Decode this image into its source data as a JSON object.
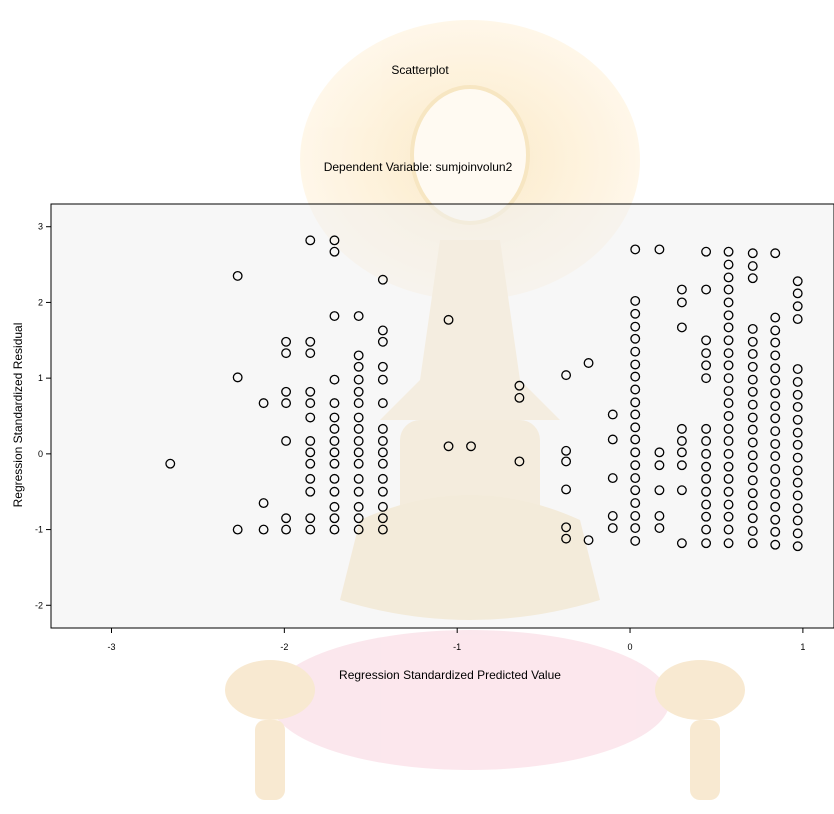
{
  "chart_data": {
    "type": "scatter",
    "title": "Scatterplot",
    "subtitle": "Dependent Variable: sumjoinvolun2",
    "xlabel": "Regression Standardized Predicted Value",
    "ylabel": "Regression Standardized Residual",
    "xlim": [
      -3.35,
      1.18
    ],
    "ylim": [
      -2.3,
      3.3
    ],
    "xticks": [
      "-3",
      "-2",
      "-1",
      "0",
      "1"
    ],
    "yticks": [
      "-2",
      "-1",
      "0",
      "1",
      "2",
      "3"
    ],
    "grid": false,
    "plot_background": "#f0f0f0",
    "marker": "open-circle",
    "columns": [
      {
        "x": -2.66,
        "y": [
          -0.13
        ]
      },
      {
        "x": -2.27,
        "y": [
          2.35,
          1.01,
          -1.0
        ]
      },
      {
        "x": -2.12,
        "y": [
          0.67,
          -0.65,
          -1.0
        ]
      },
      {
        "x": -1.99,
        "y": [
          1.48,
          1.33,
          0.82,
          0.67,
          0.17,
          -0.85,
          -1.0
        ]
      },
      {
        "x": -1.85,
        "y": [
          2.82,
          1.48,
          1.33,
          0.82,
          0.67,
          0.48,
          0.17,
          0.02,
          -0.13,
          -0.33,
          -0.5,
          -0.85,
          -1.0
        ]
      },
      {
        "x": -1.71,
        "y": [
          2.82,
          2.67,
          1.82,
          0.98,
          0.67,
          0.48,
          0.33,
          0.17,
          0.02,
          -0.13,
          -0.33,
          -0.5,
          -0.7,
          -0.85,
          -1.0
        ]
      },
      {
        "x": -1.57,
        "y": [
          1.82,
          1.3,
          1.15,
          0.98,
          0.82,
          0.67,
          0.48,
          0.33,
          0.17,
          0.02,
          -0.13,
          -0.33,
          -0.5,
          -0.7,
          -0.85,
          -1.0
        ]
      },
      {
        "x": -1.43,
        "y": [
          2.3,
          1.63,
          1.48,
          1.15,
          0.98,
          0.67,
          0.33,
          0.17,
          0.02,
          -0.13,
          -0.33,
          -0.5,
          -0.7,
          -0.85,
          -1.0
        ]
      },
      {
        "x": -1.05,
        "y": [
          1.77,
          0.1
        ]
      },
      {
        "x": -0.92,
        "y": [
          0.1
        ]
      },
      {
        "x": -0.64,
        "y": [
          0.9,
          0.74,
          -0.1
        ]
      },
      {
        "x": -0.37,
        "y": [
          1.04,
          0.04,
          -0.1,
          -0.47,
          -0.97,
          -1.12
        ]
      },
      {
        "x": -0.24,
        "y": [
          1.2,
          -1.14
        ]
      },
      {
        "x": -0.1,
        "y": [
          0.52,
          0.19,
          -0.32,
          -0.82,
          -0.98
        ]
      },
      {
        "x": 0.03,
        "y": [
          2.7,
          2.02,
          1.85,
          1.68,
          1.52,
          1.35,
          1.18,
          1.02,
          0.85,
          0.68,
          0.52,
          0.35,
          0.19,
          0.02,
          -0.15,
          -0.32,
          -0.48,
          -0.65,
          -0.82,
          -0.98,
          -1.15
        ]
      },
      {
        "x": 0.17,
        "y": [
          2.7,
          0.02,
          -0.15,
          -0.48,
          -0.82,
          -0.98
        ]
      },
      {
        "x": 0.3,
        "y": [
          2.17,
          2.0,
          1.67,
          0.33,
          0.17,
          0.02,
          -0.15,
          -0.48,
          -1.18
        ]
      },
      {
        "x": 0.44,
        "y": [
          2.67,
          2.17,
          1.5,
          1.33,
          1.17,
          1.0,
          0.33,
          0.17,
          0.0,
          -0.17,
          -0.33,
          -0.5,
          -0.67,
          -0.83,
          -1.0,
          -1.18
        ]
      },
      {
        "x": 0.57,
        "y": [
          2.67,
          2.5,
          2.33,
          2.17,
          2.0,
          1.83,
          1.67,
          1.5,
          1.33,
          1.17,
          1.0,
          0.83,
          0.67,
          0.5,
          0.33,
          0.17,
          0.0,
          -0.17,
          -0.33,
          -0.5,
          -0.67,
          -0.83,
          -1.0,
          -1.18
        ]
      },
      {
        "x": 0.71,
        "y": [
          2.65,
          2.48,
          2.32,
          1.65,
          1.48,
          1.32,
          1.15,
          0.98,
          0.82,
          0.65,
          0.48,
          0.32,
          0.15,
          -0.02,
          -0.18,
          -0.35,
          -0.52,
          -0.68,
          -0.85,
          -1.02,
          -1.18
        ]
      },
      {
        "x": 0.84,
        "y": [
          2.65,
          1.8,
          1.63,
          1.47,
          1.3,
          1.13,
          0.97,
          0.8,
          0.63,
          0.47,
          0.3,
          0.13,
          -0.03,
          -0.2,
          -0.37,
          -0.53,
          -0.7,
          -0.87,
          -1.03,
          -1.2
        ]
      },
      {
        "x": 0.97,
        "y": [
          2.28,
          2.12,
          1.95,
          1.78,
          1.12,
          0.95,
          0.78,
          0.62,
          0.45,
          0.28,
          0.12,
          -0.05,
          -0.22,
          -0.38,
          -0.55,
          -0.72,
          -0.88,
          -1.05,
          -1.22
        ]
      }
    ]
  }
}
